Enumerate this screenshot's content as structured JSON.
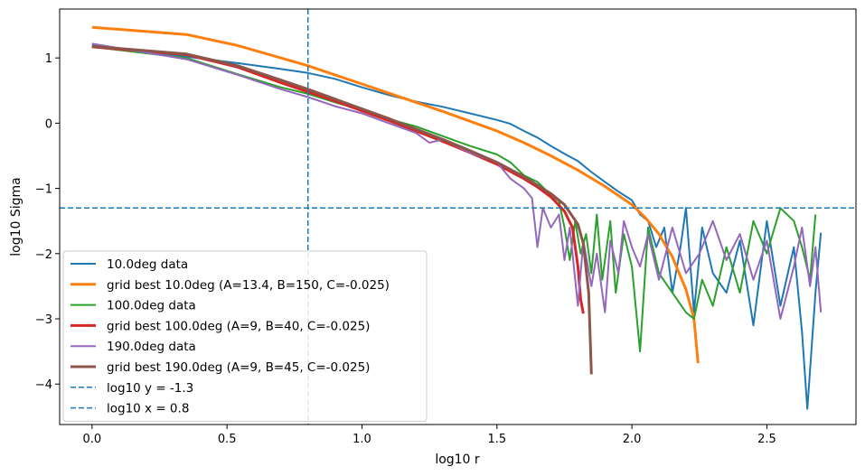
{
  "chart_data": {
    "type": "line",
    "title": "",
    "xlabel": "log10 r",
    "ylabel": "log10 Sigma",
    "xlim": [
      -0.12,
      2.83
    ],
    "ylim": [
      -4.62,
      1.75
    ],
    "xticks": [
      0.0,
      0.5,
      1.0,
      1.5,
      2.0,
      2.5
    ],
    "xtick_labels": [
      "0.0",
      "0.5",
      "1.0",
      "1.5",
      "2.0",
      "2.5"
    ],
    "yticks": [
      1,
      0,
      -1,
      -2,
      -3,
      -4
    ],
    "ytick_labels": [
      "1",
      "0",
      "−1",
      "−2",
      "−3",
      "−4"
    ],
    "grid": false,
    "legend_position": "lower-left",
    "reference_lines": [
      {
        "name": "log10 y = -1.3",
        "orientation": "horizontal",
        "value": -1.3,
        "color": "#1f77b4",
        "style": "dashed"
      },
      {
        "name": "log10 x = 0.8",
        "orientation": "vertical",
        "value": 0.8,
        "color": "#1f77b4",
        "style": "dashed"
      }
    ],
    "series": [
      {
        "name": "10.0deg data",
        "color": "#1f77b4",
        "width": 2,
        "points": [
          [
            0.0,
            1.19
          ],
          [
            0.35,
            1.02
          ],
          [
            0.54,
            0.92
          ],
          [
            0.7,
            0.83
          ],
          [
            0.8,
            0.77
          ],
          [
            0.9,
            0.68
          ],
          [
            1.0,
            0.55
          ],
          [
            1.1,
            0.43
          ],
          [
            1.2,
            0.33
          ],
          [
            1.3,
            0.25
          ],
          [
            1.4,
            0.15
          ],
          [
            1.5,
            0.05
          ],
          [
            1.55,
            -0.01
          ],
          [
            1.6,
            -0.12
          ],
          [
            1.65,
            -0.22
          ],
          [
            1.7,
            -0.35
          ],
          [
            1.75,
            -0.47
          ],
          [
            1.8,
            -0.58
          ],
          [
            1.85,
            -0.75
          ],
          [
            1.9,
            -0.9
          ],
          [
            1.95,
            -1.05
          ],
          [
            2.0,
            -1.18
          ],
          [
            2.03,
            -1.4
          ],
          [
            2.06,
            -1.5
          ],
          [
            2.09,
            -1.9
          ],
          [
            2.12,
            -1.6
          ],
          [
            2.15,
            -2.6
          ],
          [
            2.18,
            -1.9
          ],
          [
            2.2,
            -1.3
          ],
          [
            2.23,
            -2.9
          ],
          [
            2.26,
            -1.6
          ],
          [
            2.3,
            -2.3
          ],
          [
            2.35,
            -2.6
          ],
          [
            2.4,
            -1.8
          ],
          [
            2.45,
            -3.1
          ],
          [
            2.5,
            -1.5
          ],
          [
            2.55,
            -2.8
          ],
          [
            2.6,
            -1.9
          ],
          [
            2.63,
            -3.2
          ],
          [
            2.65,
            -4.38
          ],
          [
            2.68,
            -2.6
          ],
          [
            2.7,
            -1.68
          ]
        ]
      },
      {
        "name": "grid best 10.0deg (A=13.4, B=150, C=-0.025)",
        "color": "#ff7f0e",
        "width": 3,
        "points": [
          [
            0.0,
            1.47
          ],
          [
            0.35,
            1.36
          ],
          [
            0.54,
            1.19
          ],
          [
            0.7,
            1.0
          ],
          [
            0.8,
            0.88
          ],
          [
            0.9,
            0.74
          ],
          [
            1.0,
            0.6
          ],
          [
            1.1,
            0.46
          ],
          [
            1.2,
            0.32
          ],
          [
            1.3,
            0.18
          ],
          [
            1.4,
            0.03
          ],
          [
            1.5,
            -0.12
          ],
          [
            1.6,
            -0.3
          ],
          [
            1.7,
            -0.5
          ],
          [
            1.8,
            -0.72
          ],
          [
            1.9,
            -0.97
          ],
          [
            2.0,
            -1.25
          ],
          [
            2.05,
            -1.45
          ],
          [
            2.1,
            -1.7
          ],
          [
            2.15,
            -2.05
          ],
          [
            2.2,
            -2.55
          ],
          [
            2.23,
            -3.0
          ],
          [
            2.245,
            -3.68
          ]
        ]
      },
      {
        "name": "100.0deg data",
        "color": "#2ca02c",
        "width": 2,
        "points": [
          [
            0.0,
            1.17
          ],
          [
            0.35,
            1.0
          ],
          [
            0.54,
            0.75
          ],
          [
            0.7,
            0.55
          ],
          [
            0.8,
            0.45
          ],
          [
            0.9,
            0.32
          ],
          [
            1.0,
            0.2
          ],
          [
            1.1,
            0.06
          ],
          [
            1.2,
            -0.05
          ],
          [
            1.3,
            -0.2
          ],
          [
            1.4,
            -0.35
          ],
          [
            1.5,
            -0.48
          ],
          [
            1.55,
            -0.6
          ],
          [
            1.6,
            -0.8
          ],
          [
            1.65,
            -0.9
          ],
          [
            1.7,
            -1.1
          ],
          [
            1.73,
            -1.2
          ],
          [
            1.75,
            -1.6
          ],
          [
            1.77,
            -2.1
          ],
          [
            1.79,
            -1.5
          ],
          [
            1.81,
            -2.0
          ],
          [
            1.83,
            -1.7
          ],
          [
            1.85,
            -2.3
          ],
          [
            1.87,
            -1.4
          ],
          [
            1.89,
            -2.4
          ],
          [
            1.92,
            -1.5
          ],
          [
            1.94,
            -2.6
          ],
          [
            1.97,
            -1.7
          ],
          [
            2.0,
            -2.2
          ],
          [
            2.03,
            -3.5
          ],
          [
            2.06,
            -1.6
          ],
          [
            2.1,
            -2.3
          ],
          [
            2.15,
            -2.6
          ],
          [
            2.2,
            -2.9
          ],
          [
            2.23,
            -3.0
          ],
          [
            2.26,
            -2.4
          ],
          [
            2.3,
            -2.8
          ],
          [
            2.35,
            -1.9
          ],
          [
            2.4,
            -2.6
          ],
          [
            2.45,
            -1.5
          ],
          [
            2.5,
            -2.0
          ],
          [
            2.55,
            -1.3
          ],
          [
            2.6,
            -1.5
          ],
          [
            2.63,
            -1.9
          ],
          [
            2.66,
            -2.4
          ],
          [
            2.68,
            -1.4
          ]
        ]
      },
      {
        "name": "grid best 100.0deg (A=9, B=40, C=-0.025)",
        "color": "#d62728",
        "width": 3,
        "points": [
          [
            0.0,
            1.17
          ],
          [
            0.35,
            1.05
          ],
          [
            0.54,
            0.86
          ],
          [
            0.7,
            0.62
          ],
          [
            0.8,
            0.48
          ],
          [
            0.9,
            0.34
          ],
          [
            1.0,
            0.19
          ],
          [
            1.1,
            0.04
          ],
          [
            1.2,
            -0.12
          ],
          [
            1.3,
            -0.28
          ],
          [
            1.4,
            -0.45
          ],
          [
            1.5,
            -0.63
          ],
          [
            1.6,
            -0.85
          ],
          [
            1.65,
            -0.98
          ],
          [
            1.7,
            -1.13
          ],
          [
            1.75,
            -1.35
          ],
          [
            1.78,
            -1.6
          ],
          [
            1.8,
            -2.2
          ],
          [
            1.81,
            -2.7
          ],
          [
            1.82,
            -2.92
          ]
        ]
      },
      {
        "name": "190.0deg data",
        "color": "#9467bd",
        "width": 2,
        "points": [
          [
            0.0,
            1.22
          ],
          [
            0.35,
            0.98
          ],
          [
            0.54,
            0.74
          ],
          [
            0.7,
            0.52
          ],
          [
            0.8,
            0.4
          ],
          [
            0.9,
            0.26
          ],
          [
            1.0,
            0.15
          ],
          [
            1.1,
            0.0
          ],
          [
            1.2,
            -0.15
          ],
          [
            1.25,
            -0.3
          ],
          [
            1.3,
            -0.25
          ],
          [
            1.4,
            -0.45
          ],
          [
            1.5,
            -0.6
          ],
          [
            1.55,
            -0.85
          ],
          [
            1.6,
            -1.0
          ],
          [
            1.63,
            -1.15
          ],
          [
            1.65,
            -1.9
          ],
          [
            1.67,
            -1.3
          ],
          [
            1.7,
            -1.6
          ],
          [
            1.73,
            -1.4
          ],
          [
            1.75,
            -2.1
          ],
          [
            1.77,
            -1.6
          ],
          [
            1.8,
            -2.8
          ],
          [
            1.82,
            -1.8
          ],
          [
            1.85,
            -2.5
          ],
          [
            1.87,
            -2.0
          ],
          [
            1.9,
            -2.9
          ],
          [
            1.92,
            -1.8
          ],
          [
            1.95,
            -2.3
          ],
          [
            1.97,
            -1.5
          ],
          [
            2.0,
            -1.9
          ],
          [
            2.03,
            -2.2
          ],
          [
            2.06,
            -1.7
          ],
          [
            2.1,
            -2.4
          ],
          [
            2.15,
            -1.6
          ],
          [
            2.2,
            -2.3
          ],
          [
            2.25,
            -2.0
          ],
          [
            2.3,
            -1.5
          ],
          [
            2.35,
            -2.1
          ],
          [
            2.4,
            -1.7
          ],
          [
            2.45,
            -2.4
          ],
          [
            2.5,
            -1.8
          ],
          [
            2.55,
            -3.0
          ],
          [
            2.6,
            -2.2
          ],
          [
            2.63,
            -1.6
          ],
          [
            2.66,
            -2.5
          ],
          [
            2.68,
            -1.9
          ],
          [
            2.7,
            -2.9
          ]
        ]
      },
      {
        "name": "grid best 190.0deg (A=9, B=45, C=-0.025)",
        "color": "#8c564b",
        "width": 3,
        "points": [
          [
            0.0,
            1.18
          ],
          [
            0.35,
            1.06
          ],
          [
            0.54,
            0.88
          ],
          [
            0.7,
            0.66
          ],
          [
            0.8,
            0.52
          ],
          [
            0.9,
            0.37
          ],
          [
            1.0,
            0.22
          ],
          [
            1.1,
            0.07
          ],
          [
            1.2,
            -0.09
          ],
          [
            1.3,
            -0.25
          ],
          [
            1.4,
            -0.42
          ],
          [
            1.5,
            -0.6
          ],
          [
            1.6,
            -0.82
          ],
          [
            1.7,
            -1.08
          ],
          [
            1.75,
            -1.25
          ],
          [
            1.8,
            -1.55
          ],
          [
            1.82,
            -1.85
          ],
          [
            1.84,
            -2.6
          ],
          [
            1.85,
            -3.85
          ]
        ]
      }
    ]
  }
}
